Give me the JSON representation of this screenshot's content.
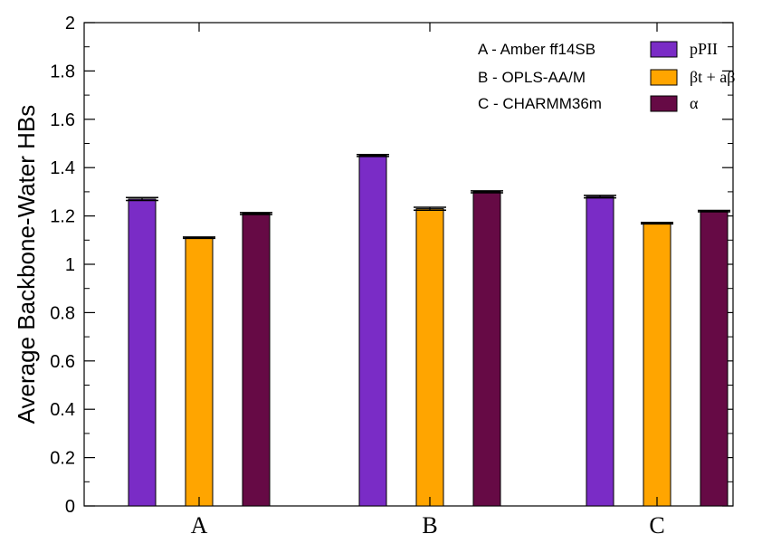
{
  "chart_data": {
    "type": "bar",
    "categories": [
      "A",
      "B",
      "C"
    ],
    "series": [
      {
        "name": "pPII",
        "values": [
          1.27,
          1.45,
          1.28
        ],
        "errors": [
          0.006,
          0.004,
          0.005
        ],
        "color": "#7a2cc6"
      },
      {
        "name": "βt + aβ",
        "values": [
          1.11,
          1.23,
          1.17
        ],
        "errors": [
          0.003,
          0.006,
          0.003
        ],
        "color": "#ffa500"
      },
      {
        "name": "α",
        "values": [
          1.21,
          1.3,
          1.22
        ],
        "errors": [
          0.004,
          0.004,
          0.003
        ],
        "color": "#660a45"
      }
    ],
    "ylabel": "Average Backbone-Water HBs",
    "xlabel": "",
    "ylim": [
      0,
      2
    ],
    "yticks": [
      "0",
      "0.2",
      "0.4",
      "0.6",
      "0.8",
      "1",
      "1.2",
      "1.4",
      "1.6",
      "1.8",
      "2"
    ],
    "legend_placement": "top-right",
    "legend_notes": [
      "A - Amber ff14SB",
      "B - OPLS-AA/M",
      "C - CHARMM36m"
    ],
    "grid": false
  }
}
